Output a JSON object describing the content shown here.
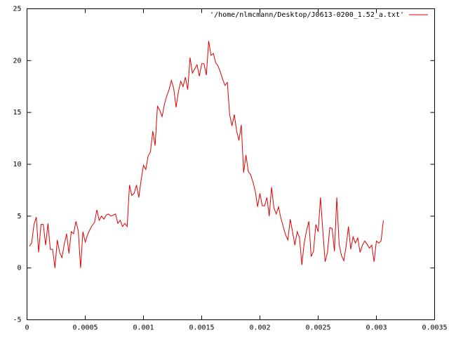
{
  "chart_data": {
    "type": "line",
    "x": [
      2e-05,
      4e-05,
      6e-05,
      8e-05,
      0.0001,
      0.00012,
      0.00014,
      0.00016,
      0.00018,
      0.0002,
      0.00022,
      0.00024,
      0.00026,
      0.00028,
      0.0003,
      0.00032,
      0.00034,
      0.00036,
      0.00038,
      0.0004,
      0.00042,
      0.00044,
      0.00046,
      0.00048,
      0.0005,
      0.00052,
      0.00054,
      0.00056,
      0.00058,
      0.0006,
      0.00062,
      0.00064,
      0.00066,
      0.00068,
      0.0007,
      0.00072,
      0.00074,
      0.00076,
      0.00078,
      0.0008,
      0.00082,
      0.00084,
      0.00086,
      0.00088,
      0.0009,
      0.00092,
      0.00094,
      0.00096,
      0.00098,
      0.001,
      0.00102,
      0.00104,
      0.00106,
      0.00108,
      0.0011,
      0.00112,
      0.00114,
      0.00116,
      0.00118,
      0.0012,
      0.00122,
      0.00124,
      0.00126,
      0.00128,
      0.0013,
      0.00132,
      0.00134,
      0.00136,
      0.00138,
      0.0014,
      0.00142,
      0.00144,
      0.00146,
      0.00148,
      0.0015,
      0.00152,
      0.00154,
      0.00156,
      0.00158,
      0.0016,
      0.00162,
      0.00164,
      0.00166,
      0.00168,
      0.0017,
      0.00172,
      0.00174,
      0.00176,
      0.00178,
      0.0018,
      0.00182,
      0.00184,
      0.00186,
      0.00188,
      0.0019,
      0.00192,
      0.00194,
      0.00196,
      0.00198,
      0.002,
      0.00202,
      0.00204,
      0.00206,
      0.00208,
      0.0021,
      0.00212,
      0.00214,
      0.00216,
      0.00218,
      0.0022,
      0.00222,
      0.00224,
      0.00226,
      0.00228,
      0.0023,
      0.00232,
      0.00234,
      0.00236,
      0.00238,
      0.0024,
      0.00242,
      0.00244,
      0.00246,
      0.00248,
      0.0025,
      0.00252,
      0.00254,
      0.00256,
      0.00258,
      0.0026,
      0.00262,
      0.00264,
      0.00266,
      0.00268,
      0.0027,
      0.00272,
      0.00274,
      0.00276,
      0.00278,
      0.0028,
      0.00282,
      0.00284,
      0.00286,
      0.00288,
      0.0029,
      0.00292,
      0.00294,
      0.00296,
      0.00298,
      0.003,
      0.00302,
      0.00304,
      0.00306
    ],
    "series": [
      {
        "name": "'/home/nlmcmann/Desktop/J0613-0200_1.52_a.txt'",
        "color": "#e00000",
        "values": [
          2.1,
          2.4,
          4.2,
          4.9,
          1.5,
          4.2,
          4.2,
          2.2,
          4.3,
          1.8,
          1.8,
          0.0,
          2.7,
          1.5,
          1.0,
          2.3,
          3.3,
          1.4,
          3.5,
          3.3,
          4.5,
          3.6,
          0.0,
          3.5,
          2.5,
          3.2,
          3.7,
          4.1,
          4.4,
          5.6,
          4.6,
          5.0,
          4.7,
          5.1,
          5.2,
          5.0,
          5.1,
          5.2,
          4.3,
          4.6,
          4.0,
          4.3,
          4.0,
          8.0,
          7.0,
          7.2,
          8.0,
          6.8,
          8.5,
          9.9,
          9.5,
          10.8,
          11.2,
          13.2,
          11.8,
          15.6,
          15.2,
          14.6,
          15.8,
          16.6,
          17.2,
          18.1,
          17.3,
          15.5,
          17.0,
          18.0,
          17.5,
          18.4,
          17.2,
          20.3,
          18.8,
          19.2,
          19.6,
          18.5,
          19.7,
          19.7,
          18.6,
          21.9,
          20.5,
          20.7,
          19.8,
          19.5,
          18.9,
          18.2,
          17.6,
          17.9,
          14.8,
          13.7,
          14.8,
          13.2,
          12.3,
          13.8,
          9.2,
          10.9,
          9.3,
          9.0,
          8.3,
          7.4,
          5.9,
          7.2,
          6.0,
          6.0,
          6.8,
          5.0,
          7.8,
          5.8,
          5.2,
          5.9,
          4.8,
          4.0,
          3.2,
          2.7,
          4.7,
          3.5,
          2.2,
          3.5,
          2.9,
          0.3,
          2.4,
          3.6,
          4.5,
          1.1,
          1.6,
          4.2,
          3.5,
          6.8,
          3.6,
          0.6,
          1.5,
          3.9,
          3.8,
          1.6,
          6.8,
          2.3,
          1.2,
          0.7,
          2.1,
          4.0,
          1.8,
          3.0,
          2.4,
          2.9,
          1.5,
          2.2,
          2.6,
          2.3,
          1.9,
          2.2,
          0.6,
          2.6,
          2.4,
          2.6,
          4.6
        ]
      }
    ],
    "xlim": [
      0,
      0.0035
    ],
    "xticks": [
      0,
      0.0005,
      0.001,
      0.0015,
      0.002,
      0.0025,
      0.003,
      0.0035
    ],
    "ylim": [
      -5,
      25
    ],
    "yticks": [
      -5,
      0,
      5,
      10,
      15,
      20,
      25
    ],
    "legend": "top-right"
  }
}
